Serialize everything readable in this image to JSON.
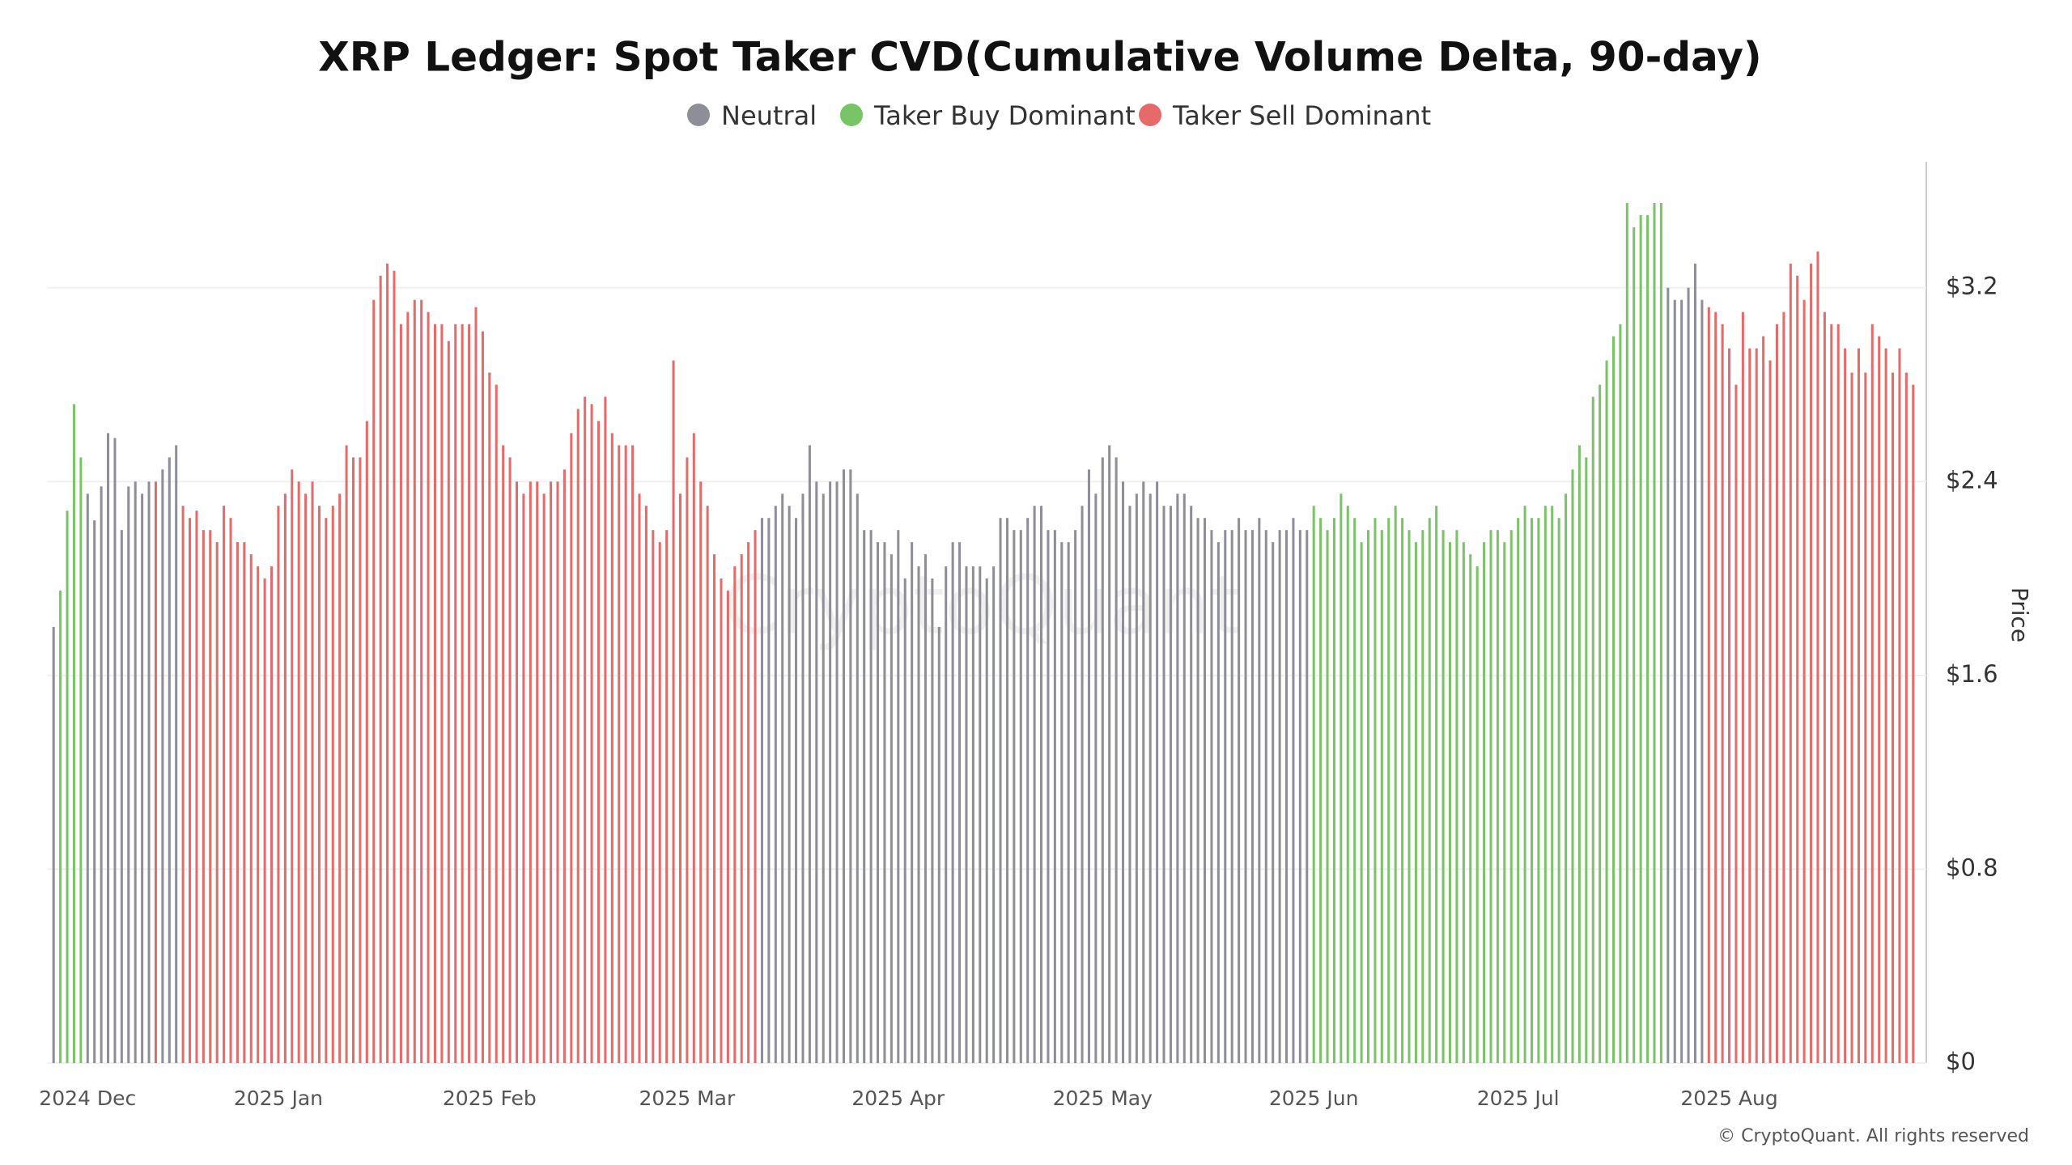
{
  "chart_data": {
    "type": "bar",
    "title": "XRP Ledger: Spot Taker CVD(Cumulative Volume Delta, 90-day)",
    "y_axis_label": "Price",
    "watermark": "CryptoQuant",
    "footer": "© CryptoQuant. All rights reserved",
    "ylim": [
      0,
      3.72
    ],
    "yticks": [
      {
        "value": 0,
        "label": "$0"
      },
      {
        "value": 0.8,
        "label": "$0.8"
      },
      {
        "value": 1.6,
        "label": "$1.6"
      },
      {
        "value": 2.4,
        "label": "$2.4"
      },
      {
        "value": 3.2,
        "label": "$3.2"
      }
    ],
    "grid": true,
    "legend": "top",
    "categories": [
      null,
      null,
      null,
      null,
      null,
      "2024 Dec",
      null,
      null,
      null,
      null,
      null,
      null,
      null,
      null,
      null,
      null,
      null,
      null,
      null,
      null,
      null,
      null,
      null,
      null,
      null,
      null,
      null,
      null,
      null,
      null,
      null,
      null,
      null,
      "2025 Jan",
      null,
      null,
      null,
      null,
      null,
      null,
      null,
      null,
      null,
      null,
      null,
      null,
      null,
      null,
      null,
      null,
      null,
      null,
      null,
      null,
      null,
      null,
      null,
      null,
      null,
      null,
      null,
      null,
      null,
      null,
      "2025 Feb",
      null,
      null,
      null,
      null,
      null,
      null,
      null,
      null,
      null,
      null,
      null,
      null,
      null,
      null,
      null,
      null,
      null,
      null,
      null,
      null,
      null,
      null,
      null,
      null,
      null,
      null,
      null,
      null,
      "2025 Mar",
      null,
      null,
      null,
      null,
      null,
      null,
      null,
      null,
      null,
      null,
      null,
      null,
      null,
      null,
      null,
      null,
      null,
      null,
      null,
      null,
      null,
      null,
      null,
      null,
      null,
      null,
      null,
      null,
      null,
      null,
      "2025 Apr",
      null,
      null,
      null,
      null,
      null,
      null,
      null,
      null,
      null,
      null,
      null,
      null,
      null,
      null,
      null,
      null,
      null,
      null,
      null,
      null,
      null,
      null,
      null,
      null,
      null,
      null,
      null,
      null,
      null,
      "2025 May",
      null,
      null,
      null,
      null,
      null,
      null,
      null,
      null,
      null,
      null,
      null,
      null,
      null,
      null,
      null,
      null,
      null,
      null,
      null,
      null,
      null,
      null,
      null,
      null,
      null,
      null,
      null,
      null,
      null,
      null,
      "2025 Jun",
      null,
      null,
      null,
      null,
      null,
      null,
      null,
      null,
      null,
      null,
      null,
      null,
      null,
      null,
      null,
      null,
      null,
      null,
      null,
      null,
      null,
      null,
      null,
      null,
      null,
      null,
      null,
      null,
      null,
      "2025 Jul",
      null,
      null,
      null,
      null,
      null,
      null,
      null,
      null,
      null,
      null,
      null,
      null,
      null,
      null,
      null,
      null,
      null,
      null,
      null,
      null,
      null,
      null,
      null,
      null,
      null,
      null,
      null,
      null,
      null,
      null,
      "2025 Aug",
      null,
      null,
      null,
      null,
      null,
      null,
      null,
      null,
      null,
      null,
      null,
      null,
      null,
      null,
      null,
      null,
      null,
      null,
      null,
      null,
      null,
      null,
      null,
      null,
      null,
      null,
      null
    ],
    "series": [
      {
        "name": "Neutral",
        "color": "#8e8e98",
        "values": [
          1.8,
          null,
          null,
          null,
          null,
          2.35,
          2.24,
          2.38,
          2.6,
          2.58,
          2.2,
          2.38,
          2.4,
          2.35,
          2.4,
          null,
          2.45,
          2.5,
          2.55,
          null,
          null,
          null,
          null,
          null,
          null,
          null,
          null,
          null,
          null,
          null,
          null,
          null,
          null,
          null,
          null,
          null,
          null,
          null,
          null,
          null,
          null,
          null,
          null,
          null,
          null,
          null,
          null,
          null,
          null,
          null,
          null,
          null,
          null,
          null,
          null,
          null,
          null,
          null,
          null,
          null,
          null,
          null,
          null,
          null,
          null,
          null,
          null,
          null,
          null,
          null,
          null,
          null,
          null,
          null,
          null,
          null,
          null,
          null,
          null,
          null,
          null,
          null,
          null,
          null,
          null,
          null,
          null,
          null,
          null,
          null,
          null,
          null,
          null,
          null,
          null,
          null,
          null,
          null,
          null,
          null,
          null,
          null,
          null,
          null,
          2.25,
          2.25,
          2.3,
          2.35,
          2.3,
          2.25,
          2.35,
          2.55,
          2.4,
          2.35,
          2.4,
          2.4,
          2.45,
          2.45,
          2.35,
          2.2,
          2.2,
          2.15,
          2.15,
          2.1,
          2.2,
          2.0,
          2.15,
          2.05,
          2.1,
          2.0,
          1.8,
          2.05,
          2.15,
          2.15,
          2.05,
          2.05,
          2.05,
          2.0,
          2.05,
          2.25,
          2.25,
          2.2,
          2.2,
          2.25,
          2.3,
          2.3,
          2.2,
          2.2,
          2.15,
          2.15,
          2.2,
          2.3,
          2.45,
          2.35,
          2.5,
          2.55,
          2.5,
          2.4,
          2.3,
          2.35,
          2.4,
          2.35,
          2.4,
          2.3,
          2.3,
          2.35,
          2.35,
          2.3,
          2.25,
          2.25,
          2.2,
          2.15,
          2.2,
          2.2,
          2.25,
          2.2,
          2.2,
          2.25,
          2.2,
          2.15,
          2.2,
          2.2,
          2.25,
          2.2,
          2.2,
          null,
          null,
          null,
          null,
          null,
          null,
          null,
          null,
          null,
          null,
          null,
          null,
          null,
          null,
          null,
          null,
          null,
          null,
          null,
          null,
          null,
          null,
          null,
          null,
          null,
          null,
          null,
          null,
          null,
          null,
          null,
          null,
          null,
          null,
          null,
          null,
          null,
          null,
          null,
          null,
          null,
          null,
          null,
          null,
          null,
          null,
          null,
          null,
          null,
          null,
          null,
          null,
          3.2,
          3.15,
          3.15,
          3.2,
          3.3,
          3.15,
          null,
          null,
          null,
          null,
          null,
          null,
          null,
          null,
          null,
          null,
          null,
          null,
          null,
          null,
          null,
          null,
          null,
          null,
          null,
          null,
          null,
          null,
          null,
          null,
          null,
          null,
          null,
          null,
          null,
          null,
          null
        ]
      },
      {
        "name": "Taker Buy Dominant",
        "color": "#78c466",
        "values": [
          null,
          1.95,
          2.28,
          2.72,
          2.5,
          null,
          null,
          null,
          null,
          null,
          null,
          null,
          null,
          null,
          null,
          null,
          null,
          null,
          null,
          null,
          null,
          null,
          null,
          null,
          null,
          null,
          null,
          null,
          null,
          null,
          null,
          null,
          null,
          null,
          null,
          null,
          null,
          null,
          null,
          null,
          null,
          null,
          null,
          null,
          null,
          null,
          null,
          null,
          null,
          null,
          null,
          null,
          null,
          null,
          null,
          null,
          null,
          null,
          null,
          null,
          null,
          null,
          null,
          null,
          null,
          null,
          null,
          null,
          null,
          null,
          null,
          null,
          null,
          null,
          null,
          null,
          null,
          null,
          null,
          null,
          null,
          null,
          null,
          null,
          null,
          null,
          null,
          null,
          null,
          null,
          null,
          null,
          null,
          null,
          null,
          null,
          null,
          null,
          null,
          null,
          null,
          null,
          null,
          null,
          null,
          null,
          null,
          null,
          null,
          null,
          null,
          null,
          null,
          null,
          null,
          null,
          null,
          null,
          null,
          null,
          null,
          null,
          null,
          null,
          null,
          null,
          null,
          null,
          null,
          null,
          null,
          null,
          null,
          null,
          null,
          null,
          null,
          null,
          null,
          null,
          null,
          null,
          null,
          null,
          null,
          null,
          null,
          null,
          null,
          null,
          null,
          null,
          null,
          null,
          null,
          null,
          null,
          null,
          null,
          null,
          null,
          null,
          null,
          null,
          null,
          null,
          null,
          null,
          null,
          null,
          null,
          null,
          null,
          null,
          null,
          null,
          null,
          null,
          null,
          null,
          null,
          null,
          null,
          null,
          null,
          2.3,
          2.25,
          2.2,
          2.25,
          2.35,
          2.3,
          2.25,
          2.15,
          2.2,
          2.25,
          2.2,
          2.25,
          2.3,
          2.25,
          2.2,
          2.15,
          2.2,
          2.25,
          2.3,
          2.2,
          2.15,
          2.2,
          2.15,
          2.1,
          2.05,
          2.15,
          2.2,
          2.2,
          2.15,
          2.2,
          2.25,
          2.3,
          2.25,
          2.25,
          2.3,
          2.3,
          2.25,
          2.35,
          2.45,
          2.55,
          2.5,
          2.75,
          2.8,
          2.9,
          3.0,
          3.05,
          3.55,
          3.45,
          3.5,
          3.5,
          3.55,
          3.55,
          null,
          null,
          null,
          null,
          null,
          null,
          null,
          null,
          null,
          null,
          null,
          null,
          null,
          null,
          null,
          null,
          null,
          null,
          null,
          null,
          null,
          null,
          null,
          null,
          null,
          null,
          null,
          null,
          null,
          null,
          null,
          null,
          null,
          null,
          null,
          null,
          null
        ]
      },
      {
        "name": "Taker Sell Dominant",
        "color": "#e66a6a",
        "values": [
          null,
          null,
          null,
          null,
          null,
          null,
          null,
          null,
          null,
          null,
          null,
          null,
          null,
          null,
          null,
          2.4,
          null,
          null,
          null,
          2.3,
          2.25,
          2.28,
          2.2,
          2.2,
          2.15,
          2.3,
          2.25,
          2.15,
          2.15,
          2.1,
          2.05,
          2.0,
          2.05,
          2.3,
          2.35,
          2.45,
          2.4,
          2.35,
          2.4,
          2.3,
          2.25,
          2.3,
          2.35,
          2.55,
          2.5,
          2.5,
          2.65,
          3.15,
          3.25,
          3.3,
          3.27,
          3.05,
          3.1,
          3.15,
          3.15,
          3.1,
          3.05,
          3.05,
          2.98,
          3.05,
          3.05,
          3.05,
          3.12,
          3.02,
          2.85,
          2.8,
          2.55,
          2.5,
          2.4,
          2.35,
          2.4,
          2.4,
          2.35,
          2.4,
          2.4,
          2.45,
          2.6,
          2.7,
          2.75,
          2.72,
          2.65,
          2.75,
          2.6,
          2.55,
          2.55,
          2.55,
          2.35,
          2.3,
          2.2,
          2.15,
          2.2,
          2.9,
          2.35,
          2.5,
          2.6,
          2.4,
          2.3,
          2.1,
          2.0,
          1.95,
          2.05,
          2.1,
          2.15,
          2.2,
          null,
          null,
          null,
          null,
          null,
          null,
          null,
          null,
          null,
          null,
          null,
          null,
          null,
          null,
          null,
          null,
          null,
          null,
          null,
          null,
          null,
          null,
          null,
          null,
          null,
          null,
          null,
          null,
          null,
          null,
          null,
          null,
          null,
          null,
          null,
          null,
          null,
          null,
          null,
          null,
          null,
          null,
          null,
          null,
          null,
          null,
          null,
          null,
          null,
          null,
          null,
          null,
          null,
          null,
          null,
          null,
          null,
          null,
          null,
          null,
          null,
          null,
          null,
          null,
          null,
          null,
          null,
          null,
          null,
          null,
          null,
          null,
          null,
          null,
          null,
          null,
          null,
          null,
          null,
          null,
          null,
          null,
          null,
          null,
          null,
          null,
          null,
          null,
          null,
          null,
          null,
          null,
          null,
          null,
          null,
          null,
          null,
          null,
          null,
          null,
          null,
          null,
          null,
          null,
          null,
          null,
          null,
          null,
          null,
          null,
          null,
          null,
          null,
          null,
          null,
          null,
          null,
          null,
          null,
          null,
          null,
          null,
          null,
          null,
          null,
          null,
          null,
          null,
          null,
          null,
          null,
          null,
          null,
          null,
          null,
          null,
          null,
          null,
          null,
          3.12,
          3.1,
          3.05,
          2.95,
          2.8,
          3.1,
          2.95,
          2.95,
          3.0,
          2.9,
          3.05,
          3.1,
          3.3,
          3.25,
          3.15,
          3.3,
          3.35,
          3.1,
          3.05,
          3.05,
          2.95,
          2.85,
          2.95,
          2.85,
          3.05,
          3.0,
          2.95,
          2.85,
          2.95,
          2.85,
          2.8
        ]
      }
    ]
  }
}
